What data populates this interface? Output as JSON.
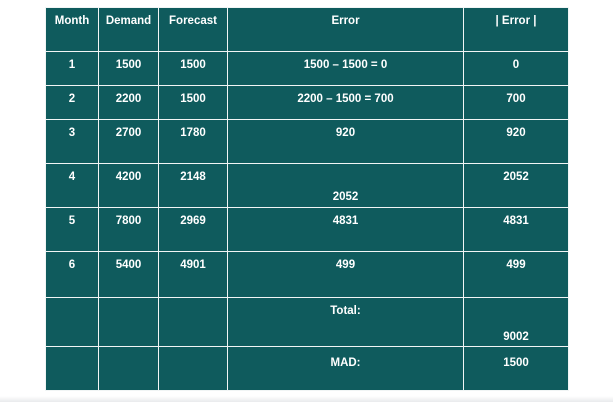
{
  "table": {
    "columns": [
      "Month",
      "Demand",
      "Forecast",
      "Error",
      "| Error |"
    ],
    "rows": [
      {
        "month": "1",
        "demand": "1500",
        "forecast": "1500",
        "error": "1500 – 1500 = 0",
        "abs_error": "0"
      },
      {
        "month": "2",
        "demand": "2200",
        "forecast": "1500",
        "error": "2200 – 1500 = 700",
        "abs_error": "700"
      },
      {
        "month": "3",
        "demand": "2700",
        "forecast": "1780",
        "error": "920",
        "abs_error": "920"
      },
      {
        "month": "4",
        "demand": "4200",
        "forecast": "2148",
        "error": "2052",
        "abs_error": "2052"
      },
      {
        "month": "5",
        "demand": "7800",
        "forecast": "2969",
        "error": "4831",
        "abs_error": "4831"
      },
      {
        "month": "6",
        "demand": "5400",
        "forecast": "4901",
        "error": "499",
        "abs_error": "499"
      }
    ],
    "total_label": "Total:",
    "total_value": "9002",
    "mad_label": "MAD:",
    "mad_value": "1500"
  },
  "colors": {
    "table_background": "#0f5b5d",
    "grid_lines": "#f1f5f5",
    "text": "#ffffff"
  }
}
